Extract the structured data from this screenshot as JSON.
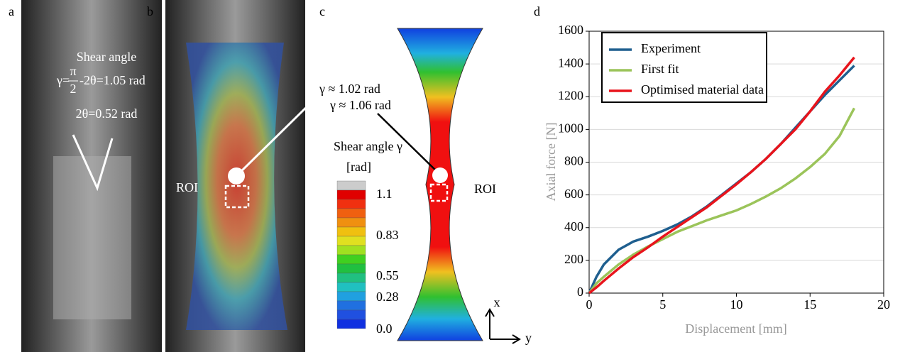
{
  "panels": {
    "a": "a",
    "b": "b",
    "c": "c",
    "d": "d"
  },
  "photo_a": {
    "title": "Shear angle",
    "formula": {
      "lhs": "γ=",
      "num": "π",
      "den": "2",
      "rhs": "-2θ=1.05 rad"
    },
    "angle": "2θ=0.52 rad"
  },
  "photo_b": {
    "roi": "ROI",
    "gamma": "γ ≈ 1.02 rad"
  },
  "simulation_c": {
    "roi": "ROI",
    "gamma": "γ ≈ 1.06 rad",
    "axis_x": "x",
    "axis_y": "y"
  },
  "colorbar": {
    "title": "Shear angle γ",
    "unit": "[rad]",
    "labels": [
      "1.1",
      "0.83",
      "0.55",
      "0.28",
      "0.0"
    ]
  },
  "chart_data": {
    "type": "line",
    "xlabel": "Displacement [mm]",
    "ylabel": "Axial force [N]",
    "x": [
      0,
      0.5,
      1,
      2,
      3,
      4,
      5,
      6,
      7,
      8,
      9,
      10,
      11,
      12,
      13,
      14,
      15,
      16,
      17,
      18
    ],
    "series": [
      {
        "name": "Experiment",
        "color": "#1f5f8f",
        "values": [
          0,
          100,
          175,
          265,
          315,
          345,
          380,
          420,
          470,
          530,
          600,
          670,
          740,
          820,
          910,
          1010,
          1110,
          1210,
          1300,
          1390
        ]
      },
      {
        "name": "First fit",
        "color": "#9bc45a",
        "values": [
          0,
          60,
          100,
          175,
          235,
          285,
          330,
          375,
          410,
          445,
          475,
          505,
          545,
          590,
          640,
          700,
          770,
          850,
          960,
          1130
        ]
      },
      {
        "name": "Optimised material data",
        "color": "#e8141c",
        "values": [
          0,
          35,
          75,
          150,
          220,
          280,
          345,
          405,
          465,
          525,
          595,
          665,
          740,
          820,
          910,
          1000,
          1110,
          1230,
          1330,
          1440
        ]
      }
    ],
    "xlim": [
      0,
      20
    ],
    "xticks": [
      0,
      5,
      10,
      15,
      20
    ],
    "ylim": [
      0,
      1600
    ],
    "yticks": [
      0,
      200,
      400,
      600,
      800,
      1000,
      1200,
      1400,
      1600
    ],
    "grid": true
  }
}
